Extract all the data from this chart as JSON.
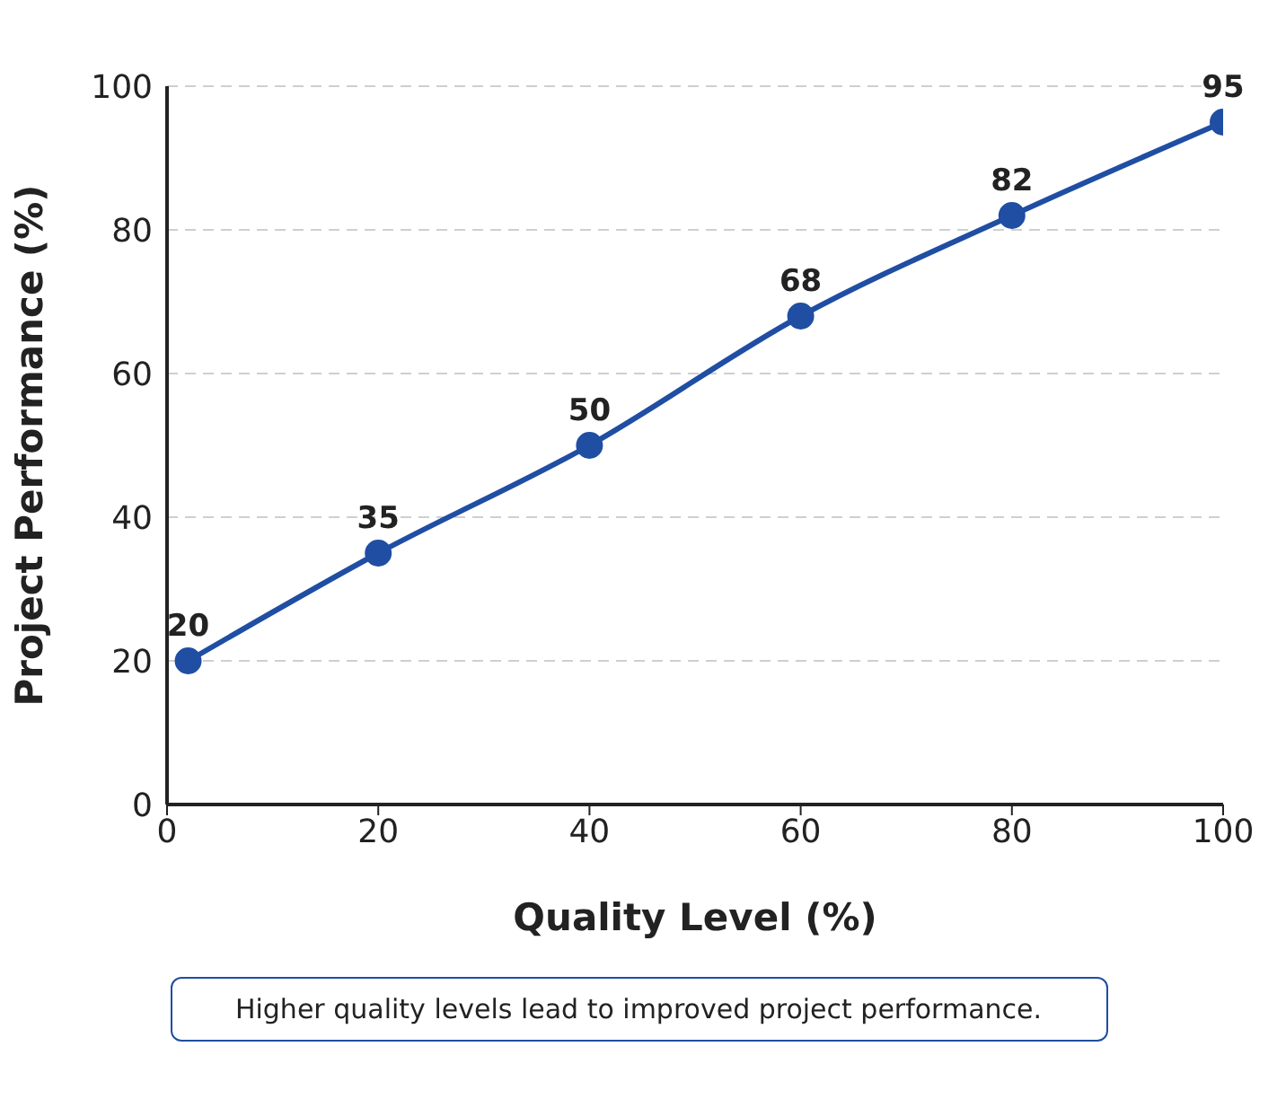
{
  "chart_data": {
    "type": "line",
    "xlabel": "Quality Level (%)",
    "ylabel": "Project Performance (%)",
    "x": [
      2,
      20,
      40,
      60,
      80,
      100
    ],
    "series": [
      {
        "color": "#1f4ea3",
        "values": [
          20,
          35,
          50,
          68,
          82,
          95
        ]
      }
    ],
    "xlim": [
      0,
      100
    ],
    "xticks": [
      0,
      20,
      40,
      60,
      80,
      100
    ],
    "ylim": [
      0,
      100
    ],
    "yticks": [
      0,
      20,
      40,
      60,
      80,
      100
    ],
    "grid": "y",
    "marker": "circle",
    "line_style": "solid",
    "data_labels": true,
    "annotations": [
      "Higher quality levels lead to improved project performance."
    ]
  }
}
